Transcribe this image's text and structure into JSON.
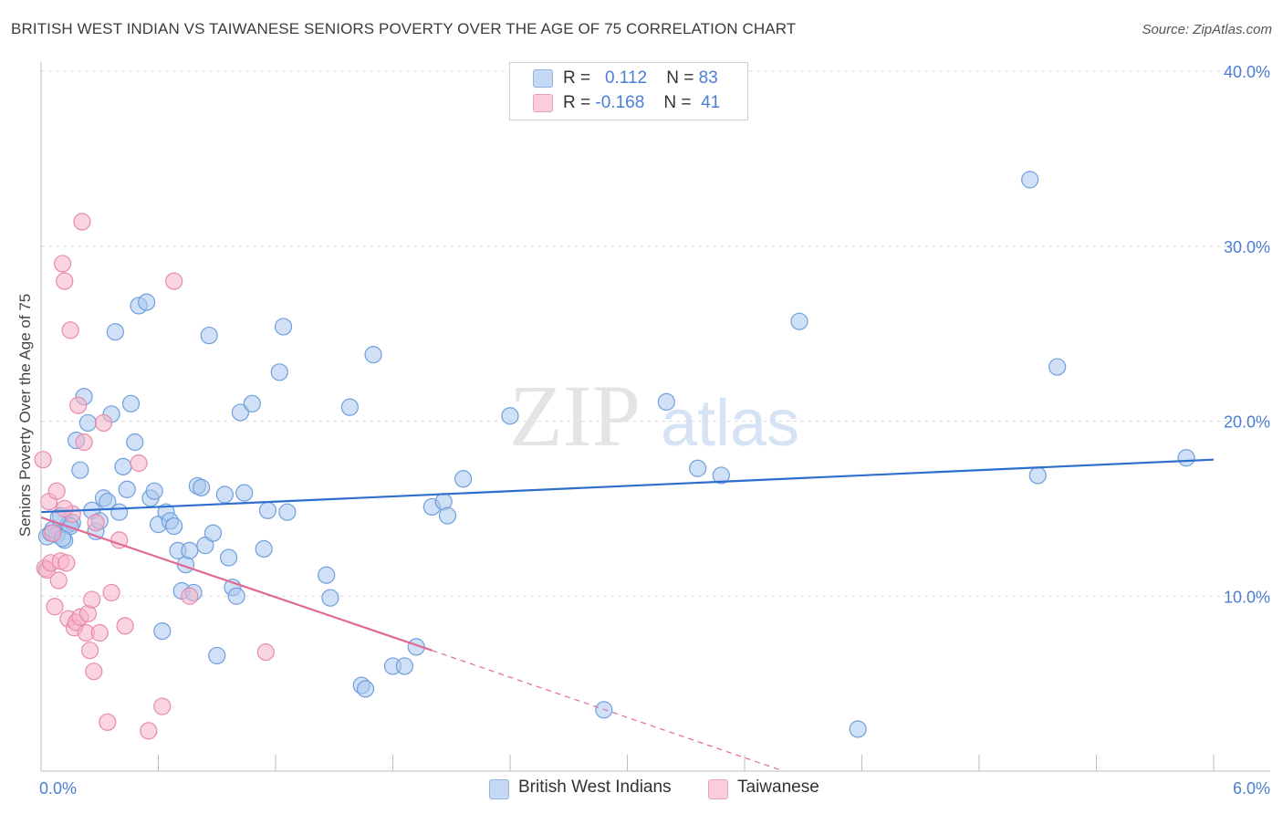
{
  "title": "BRITISH WEST INDIAN VS TAIWANESE SENIORS POVERTY OVER THE AGE OF 75 CORRELATION CHART",
  "source": "Source: ZipAtlas.com",
  "watermark": {
    "zip": "ZIP",
    "atlas": "atlas"
  },
  "legend": {
    "rows": [
      {
        "r_label": "R =",
        "r_value": "0.112",
        "n_label": "N =",
        "n_value": "83",
        "color": "#a9c6ef"
      },
      {
        "r_label": "R =",
        "r_value": "-0.168",
        "n_label": "N =",
        "n_value": "41",
        "color": "#f5b3c8"
      }
    ]
  },
  "bottom_legend": [
    {
      "label": "British West Indians",
      "color": "#a9c6ef"
    },
    {
      "label": "Taiwanese",
      "color": "#f5b3c8"
    }
  ],
  "chart_data": {
    "type": "scatter",
    "title": "BRITISH WEST INDIAN VS TAIWANESE SENIORS POVERTY OVER THE AGE OF 75 CORRELATION CHART",
    "xlabel": "",
    "ylabel": "Seniors Poverty Over the Age of 75",
    "xlim": [
      0,
      6
    ],
    "ylim": [
      0,
      40
    ],
    "x_tick_labels": [
      "0.0%",
      "6.0%"
    ],
    "y_ticks": [
      10,
      20,
      30,
      40
    ],
    "y_tick_labels": [
      "10.0%",
      "20.0%",
      "30.0%",
      "40.0%"
    ],
    "grid": true,
    "series": [
      {
        "name": "British West Indians",
        "color": "#a9c6ef",
        "stroke": "#6f9fdc",
        "line_color": "#2e6fce",
        "trend": {
          "x": [
            0,
            6
          ],
          "y": [
            14.8,
            17.8
          ]
        },
        "points": [
          [
            0.03,
            13.4
          ],
          [
            0.05,
            13.6
          ],
          [
            0.08,
            13.5
          ],
          [
            0.1,
            14.6
          ],
          [
            0.12,
            13.2
          ],
          [
            0.14,
            14.1
          ],
          [
            0.16,
            14.2
          ],
          [
            0.18,
            18.9
          ],
          [
            0.2,
            17.2
          ],
          [
            0.22,
            21.4
          ],
          [
            0.24,
            19.9
          ],
          [
            0.26,
            14.9
          ],
          [
            0.28,
            13.7
          ],
          [
            0.3,
            14.3
          ],
          [
            0.32,
            15.6
          ],
          [
            0.34,
            15.4
          ],
          [
            0.36,
            20.4
          ],
          [
            0.38,
            25.1
          ],
          [
            0.4,
            14.8
          ],
          [
            0.42,
            17.4
          ],
          [
            0.44,
            16.1
          ],
          [
            0.46,
            21.0
          ],
          [
            0.48,
            18.8
          ],
          [
            0.5,
            26.6
          ],
          [
            0.54,
            26.8
          ],
          [
            0.56,
            15.6
          ],
          [
            0.58,
            16.0
          ],
          [
            0.6,
            14.1
          ],
          [
            0.62,
            8.0
          ],
          [
            0.64,
            14.8
          ],
          [
            0.66,
            14.3
          ],
          [
            0.68,
            14.0
          ],
          [
            0.7,
            12.6
          ],
          [
            0.72,
            10.3
          ],
          [
            0.74,
            11.8
          ],
          [
            0.76,
            12.6
          ],
          [
            0.78,
            10.2
          ],
          [
            0.8,
            16.3
          ],
          [
            0.82,
            16.2
          ],
          [
            0.84,
            12.9
          ],
          [
            0.86,
            24.9
          ],
          [
            0.88,
            13.6
          ],
          [
            0.9,
            6.6
          ],
          [
            0.94,
            15.8
          ],
          [
            0.96,
            12.2
          ],
          [
            0.98,
            10.5
          ],
          [
            1.0,
            10.0
          ],
          [
            1.02,
            20.5
          ],
          [
            1.04,
            15.9
          ],
          [
            1.08,
            21.0
          ],
          [
            1.14,
            12.7
          ],
          [
            1.16,
            14.9
          ],
          [
            1.22,
            22.8
          ],
          [
            1.24,
            25.4
          ],
          [
            1.26,
            14.8
          ],
          [
            1.46,
            11.2
          ],
          [
            1.48,
            9.9
          ],
          [
            1.58,
            20.8
          ],
          [
            1.64,
            4.9
          ],
          [
            1.66,
            4.7
          ],
          [
            1.7,
            23.8
          ],
          [
            1.8,
            6.0
          ],
          [
            1.86,
            6.0
          ],
          [
            1.92,
            7.1
          ],
          [
            2.0,
            15.1
          ],
          [
            2.06,
            15.4
          ],
          [
            2.08,
            14.6
          ],
          [
            2.16,
            16.7
          ],
          [
            2.4,
            20.3
          ],
          [
            2.88,
            3.5
          ],
          [
            3.2,
            21.1
          ],
          [
            3.36,
            17.3
          ],
          [
            3.48,
            16.9
          ],
          [
            3.88,
            25.7
          ],
          [
            4.18,
            2.4
          ],
          [
            5.06,
            33.8
          ],
          [
            5.1,
            16.9
          ],
          [
            5.2,
            23.1
          ],
          [
            5.86,
            17.9
          ],
          [
            0.06,
            13.8
          ],
          [
            0.09,
            14.5
          ],
          [
            0.15,
            14.0
          ],
          [
            0.11,
            13.3
          ]
        ]
      },
      {
        "name": "Taiwanese",
        "color": "#f5b3c8",
        "stroke": "#e88aa8",
        "line_color": "#e06a95",
        "trend": {
          "x": [
            0,
            2.0
          ],
          "y": [
            14.5,
            6.9
          ]
        },
        "trend_dashed": {
          "x": [
            2.0,
            3.8
          ],
          "y": [
            6.9,
            0
          ]
        },
        "points": [
          [
            0.01,
            17.8
          ],
          [
            0.02,
            11.6
          ],
          [
            0.03,
            11.5
          ],
          [
            0.04,
            15.4
          ],
          [
            0.05,
            11.9
          ],
          [
            0.06,
            13.6
          ],
          [
            0.07,
            9.4
          ],
          [
            0.08,
            16.0
          ],
          [
            0.09,
            10.9
          ],
          [
            0.1,
            12.0
          ],
          [
            0.11,
            29.0
          ],
          [
            0.12,
            28.0
          ],
          [
            0.13,
            11.9
          ],
          [
            0.14,
            8.7
          ],
          [
            0.15,
            25.2
          ],
          [
            0.16,
            14.7
          ],
          [
            0.17,
            8.2
          ],
          [
            0.18,
            8.5
          ],
          [
            0.19,
            20.9
          ],
          [
            0.2,
            8.8
          ],
          [
            0.21,
            31.4
          ],
          [
            0.22,
            18.8
          ],
          [
            0.23,
            7.9
          ],
          [
            0.24,
            9.0
          ],
          [
            0.25,
            6.9
          ],
          [
            0.26,
            9.8
          ],
          [
            0.27,
            5.7
          ],
          [
            0.28,
            14.2
          ],
          [
            0.3,
            7.9
          ],
          [
            0.32,
            19.9
          ],
          [
            0.34,
            2.8
          ],
          [
            0.36,
            10.2
          ],
          [
            0.4,
            13.2
          ],
          [
            0.43,
            8.3
          ],
          [
            0.5,
            17.6
          ],
          [
            0.55,
            2.3
          ],
          [
            0.62,
            3.7
          ],
          [
            0.68,
            28.0
          ],
          [
            0.76,
            10.0
          ],
          [
            1.15,
            6.8
          ],
          [
            0.12,
            15.0
          ]
        ]
      }
    ]
  }
}
